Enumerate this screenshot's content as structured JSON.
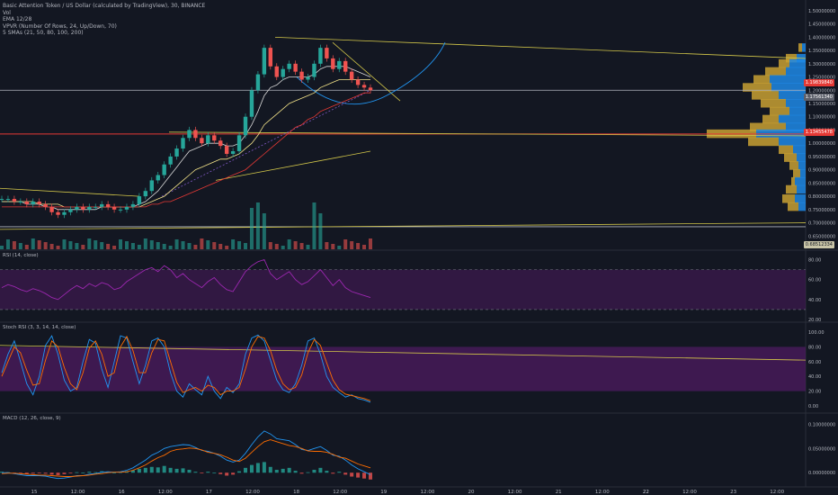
{
  "header": {
    "title": "Basic Attention Token / US Dollar (calculated by TradingView), 30, BINANCE",
    "vol": "Vol",
    "ema": "EMA 12/28",
    "vpvr": "VPVR (Number Of Rows, 24, Up/Down, 70)",
    "smas": "5 SMAs (21, 50, 80, 100, 200)"
  },
  "panes": {
    "rsi": "RSI (14, close)",
    "stoch": "Stoch RSI (3, 3, 14, 14, close)",
    "macd": "MACD (12, 26, close, 9)"
  },
  "price_tags": {
    "tag1": "1.19839840",
    "tag2": "1.17561340",
    "tag3": "1.13455478",
    "tag4": "0.68512334"
  },
  "colors": {
    "background": "#131722",
    "up": "#26a69a",
    "down": "#ef5350",
    "vpvr_up": "#1e88e5",
    "vpvr_down": "#c8a032",
    "rsi_band": "#4a1a5c",
    "trendline": "#d4c84a",
    "red_line": "#e53935"
  },
  "chart_data": [
    {
      "type": "line",
      "title": "Basic Attention Token / US Dollar (calculated by TradingView), 30, BINANCE",
      "x_ticks": [
        "15",
        "12:00",
        "16",
        "12:00",
        "17",
        "12:00",
        "18",
        "12:00",
        "19",
        "12:00",
        "20",
        "12:00",
        "21",
        "12:00",
        "22",
        "12:00",
        "23",
        "12:00"
      ],
      "y_ticks": [
        "1.50000000",
        "1.45000000",
        "1.40000000",
        "1.35000000",
        "1.30000000",
        "1.25000000",
        "1.20000000",
        "1.15000000",
        "1.10000000",
        "1.05000000",
        "1.00000000",
        "0.95000000",
        "0.90000000",
        "0.85000000",
        "0.80000000",
        "0.75000000",
        "0.70000000",
        "0.65000000"
      ],
      "ylim": [
        0.6,
        1.52
      ],
      "close": [
        0.79,
        0.79,
        0.78,
        0.78,
        0.77,
        0.78,
        0.77,
        0.76,
        0.74,
        0.73,
        0.74,
        0.75,
        0.76,
        0.75,
        0.76,
        0.76,
        0.77,
        0.76,
        0.75,
        0.75,
        0.76,
        0.77,
        0.8,
        0.82,
        0.86,
        0.88,
        0.92,
        0.95,
        0.98,
        1.02,
        1.05,
        1.02,
        1.0,
        1.03,
        1.01,
        0.99,
        0.96,
        0.97,
        1.03,
        1.1,
        1.2,
        1.26,
        1.36,
        1.29,
        1.25,
        1.28,
        1.3,
        1.27,
        1.24,
        1.25,
        1.3,
        1.36,
        1.32,
        1.28,
        1.31,
        1.27,
        1.24,
        1.22,
        1.21,
        1.2
      ],
      "x_index_start": 0,
      "x_index_end": 59,
      "horizontal_lines": [
        1.2,
        1.035,
        0.685
      ],
      "overlay_series": [
        {
          "name": "EMA 12",
          "values": [
            0.78,
            0.78,
            0.78,
            0.78,
            0.77,
            0.77,
            0.77,
            0.76,
            0.76,
            0.75,
            0.75,
            0.75,
            0.75,
            0.75,
            0.75,
            0.75,
            0.76,
            0.76,
            0.76,
            0.76,
            0.76,
            0.76,
            0.77,
            0.78,
            0.8,
            0.82,
            0.85,
            0.88,
            0.91,
            0.94,
            0.97,
            0.98,
            0.99,
            1.0,
            1.0,
            1.0,
            0.99,
            0.99,
            1.0,
            1.03,
            1.07,
            1.12,
            1.18,
            1.21,
            1.22,
            1.24,
            1.25,
            1.25,
            1.25,
            1.25,
            1.26,
            1.28,
            1.29,
            1.29,
            1.29,
            1.29,
            1.28,
            1.27,
            1.26,
            1.25
          ]
        },
        {
          "name": "EMA 28",
          "values": [
            0.78,
            0.78,
            0.78,
            0.78,
            0.78,
            0.78,
            0.77,
            0.77,
            0.77,
            0.77,
            0.76,
            0.76,
            0.76,
            0.76,
            0.76,
            0.76,
            0.76,
            0.76,
            0.76,
            0.76,
            0.76,
            0.76,
            0.76,
            0.77,
            0.78,
            0.79,
            0.8,
            0.82,
            0.84,
            0.86,
            0.88,
            0.9,
            0.91,
            0.92,
            0.93,
            0.94,
            0.94,
            0.95,
            0.96,
            0.98,
            1.0,
            1.03,
            1.07,
            1.09,
            1.11,
            1.13,
            1.15,
            1.16,
            1.17,
            1.18,
            1.19,
            1.21,
            1.22,
            1.23,
            1.24,
            1.24,
            1.24,
            1.24,
            1.24,
            1.24
          ]
        },
        {
          "name": "SMA 80",
          "values": [
            0.76,
            0.76,
            0.76,
            0.76,
            0.76,
            0.76,
            0.76,
            0.76,
            0.76,
            0.76,
            0.76,
            0.76,
            0.76,
            0.76,
            0.76,
            0.76,
            0.76,
            0.76,
            0.76,
            0.76,
            0.76,
            0.76,
            0.76,
            0.76,
            0.77,
            0.77,
            0.78,
            0.78,
            0.79,
            0.8,
            0.81,
            0.82,
            0.83,
            0.84,
            0.85,
            0.86,
            0.87,
            0.88,
            0.89,
            0.9,
            0.92,
            0.94,
            0.96,
            0.98,
            1.0,
            1.02,
            1.04,
            1.06,
            1.07,
            1.09,
            1.1,
            1.12,
            1.13,
            1.14,
            1.15,
            1.16,
            1.17,
            1.18,
            1.19,
            1.19
          ]
        }
      ]
    },
    {
      "type": "area",
      "title": "RSI (14, close)",
      "y_ticks": [
        "80.00",
        "60.00",
        "40.00",
        "20.00"
      ],
      "ylim": [
        20,
        85
      ],
      "band": [
        30,
        70
      ],
      "values": [
        52,
        55,
        53,
        50,
        48,
        51,
        49,
        46,
        42,
        40,
        45,
        50,
        54,
        51,
        56,
        53,
        57,
        55,
        50,
        52,
        58,
        62,
        66,
        70,
        72,
        68,
        74,
        70,
        62,
        66,
        60,
        56,
        52,
        58,
        62,
        55,
        50,
        48,
        58,
        68,
        74,
        78,
        80,
        66,
        60,
        64,
        68,
        60,
        55,
        58,
        64,
        70,
        62,
        54,
        60,
        52,
        48,
        46,
        44,
        42
      ]
    },
    {
      "type": "line",
      "title": "Stoch RSI (3, 3, 14, 14, close)",
      "y_ticks": [
        "100.00",
        "80.00",
        "60.00",
        "40.00",
        "20.00",
        "0.00"
      ],
      "ylim": [
        0,
        100
      ],
      "band": [
        20,
        80
      ],
      "series": [
        {
          "name": "K",
          "values": [
            45,
            70,
            88,
            60,
            30,
            15,
            40,
            82,
            95,
            70,
            35,
            20,
            25,
            60,
            90,
            85,
            50,
            25,
            60,
            95,
            92,
            60,
            30,
            55,
            88,
            92,
            80,
            45,
            20,
            12,
            30,
            22,
            15,
            40,
            20,
            10,
            25,
            18,
            30,
            70,
            92,
            96,
            88,
            62,
            35,
            22,
            18,
            30,
            55,
            88,
            92,
            70,
            40,
            25,
            18,
            12,
            15,
            10,
            8,
            5
          ]
        },
        {
          "name": "D",
          "values": [
            40,
            60,
            80,
            72,
            48,
            28,
            30,
            62,
            88,
            80,
            52,
            30,
            22,
            45,
            78,
            88,
            70,
            40,
            45,
            80,
            94,
            75,
            45,
            45,
            72,
            90,
            88,
            60,
            32,
            18,
            22,
            25,
            20,
            28,
            25,
            15,
            20,
            20,
            25,
            50,
            80,
            94,
            92,
            75,
            48,
            30,
            22,
            25,
            42,
            72,
            90,
            82,
            58,
            35,
            22,
            16,
            14,
            12,
            10,
            7
          ]
        }
      ]
    },
    {
      "type": "bar",
      "title": "MACD (12, 26, close, 9)",
      "y_ticks": [
        "0.10000000",
        "0.05000000",
        "0.00000000"
      ],
      "ylim": [
        -0.02,
        0.11
      ],
      "histogram": [
        0.002,
        0.001,
        -0.001,
        -0.002,
        -0.003,
        -0.002,
        -0.001,
        -0.002,
        -0.004,
        -0.005,
        -0.003,
        -0.001,
        0.001,
        0.0,
        0.002,
        0.001,
        0.003,
        0.002,
        0.0,
        0.001,
        0.003,
        0.005,
        0.008,
        0.01,
        0.012,
        0.011,
        0.014,
        0.01,
        0.008,
        0.009,
        0.006,
        0.002,
        -0.001,
        0.002,
        0.0,
        -0.003,
        -0.006,
        -0.004,
        0.003,
        0.01,
        0.016,
        0.02,
        0.022,
        0.012,
        0.006,
        0.008,
        0.01,
        0.004,
        -0.002,
        0.001,
        0.006,
        0.01,
        0.004,
        -0.002,
        0.002,
        -0.004,
        -0.008,
        -0.01,
        -0.012,
        -0.014
      ],
      "series": [
        {
          "name": "MACD",
          "values": [
            0.0,
            0.0,
            -0.002,
            -0.004,
            -0.006,
            -0.006,
            -0.006,
            -0.007,
            -0.01,
            -0.012,
            -0.011,
            -0.009,
            -0.006,
            -0.006,
            -0.003,
            -0.002,
            0.001,
            0.002,
            0.001,
            0.002,
            0.005,
            0.01,
            0.018,
            0.026,
            0.036,
            0.042,
            0.05,
            0.054,
            0.056,
            0.058,
            0.057,
            0.052,
            0.046,
            0.044,
            0.04,
            0.034,
            0.026,
            0.022,
            0.026,
            0.04,
            0.058,
            0.074,
            0.086,
            0.08,
            0.07,
            0.068,
            0.066,
            0.058,
            0.048,
            0.046,
            0.05,
            0.054,
            0.046,
            0.036,
            0.034,
            0.026,
            0.016,
            0.008,
            0.002,
            -0.004
          ]
        },
        {
          "name": "Signal",
          "values": [
            -0.002,
            -0.001,
            -0.001,
            -0.002,
            -0.003,
            -0.004,
            -0.005,
            -0.005,
            -0.006,
            -0.007,
            -0.008,
            -0.008,
            -0.007,
            -0.006,
            -0.005,
            -0.003,
            -0.002,
            0.0,
            0.001,
            0.001,
            0.002,
            0.005,
            0.01,
            0.016,
            0.024,
            0.031,
            0.036,
            0.044,
            0.048,
            0.049,
            0.051,
            0.05,
            0.047,
            0.042,
            0.04,
            0.037,
            0.032,
            0.026,
            0.023,
            0.03,
            0.042,
            0.054,
            0.064,
            0.068,
            0.064,
            0.06,
            0.056,
            0.054,
            0.05,
            0.045,
            0.044,
            0.044,
            0.042,
            0.038,
            0.032,
            0.03,
            0.024,
            0.018,
            0.014,
            0.01
          ]
        }
      ]
    }
  ]
}
